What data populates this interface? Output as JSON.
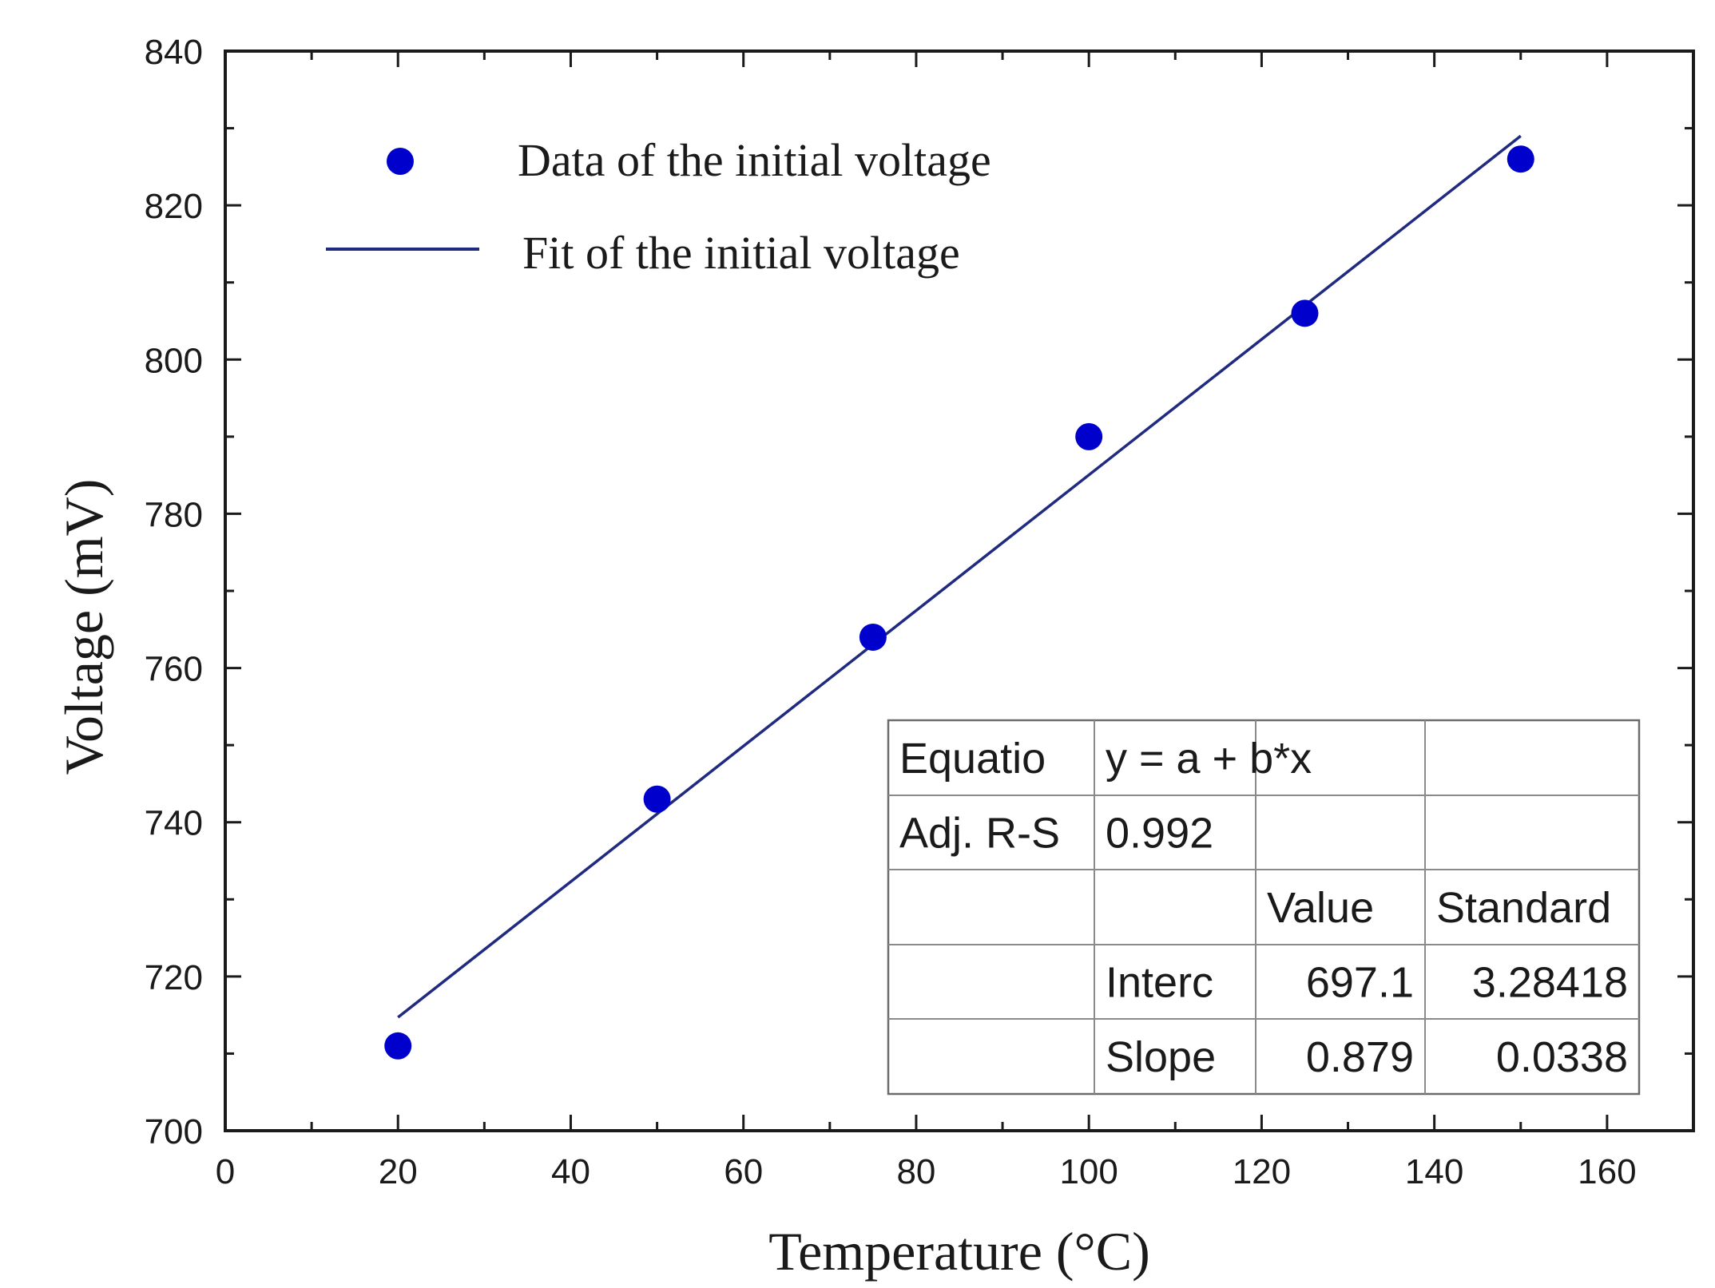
{
  "chart_data": {
    "type": "scatter",
    "xlabel": "Temperature (°C)",
    "ylabel": "Voltage (mV)",
    "xlim": [
      0,
      170
    ],
    "ylim": [
      700,
      840
    ],
    "x_ticks": [
      0,
      20,
      40,
      60,
      80,
      100,
      120,
      140,
      160
    ],
    "y_ticks": [
      700,
      720,
      740,
      760,
      780,
      800,
      820,
      840
    ],
    "x_minor_step": 10,
    "y_minor_step": 10,
    "colors": {
      "points": "#0000cc",
      "fit": "#1f2a80",
      "axes": "#1a1a1a"
    },
    "legend": {
      "position": "top-left",
      "items": [
        {
          "label": "Data of the initial voltage",
          "kind": "marker"
        },
        {
          "label": "Fit of the initial voltage",
          "kind": "line"
        }
      ]
    },
    "series": [
      {
        "name": "Data of the initial voltage",
        "kind": "scatter",
        "x": [
          20,
          50,
          75,
          100,
          125,
          150
        ],
        "y": [
          711,
          743,
          764,
          790,
          806,
          826
        ]
      },
      {
        "name": "Fit of the initial voltage",
        "kind": "line",
        "x": [
          20,
          150
        ],
        "y": [
          714.7,
          829.0
        ]
      }
    ],
    "fit_table": {
      "position": "bottom-right",
      "rows": [
        [
          "Equatio",
          "y = a + b*x",
          "",
          ""
        ],
        [
          "Adj. R-S",
          "0.992",
          "",
          ""
        ],
        [
          "",
          "",
          "Value",
          "Standard"
        ],
        [
          "",
          "Interc",
          "697.1",
          "3.28418"
        ],
        [
          "",
          "Slope",
          "0.879",
          "0.0338"
        ]
      ]
    }
  }
}
